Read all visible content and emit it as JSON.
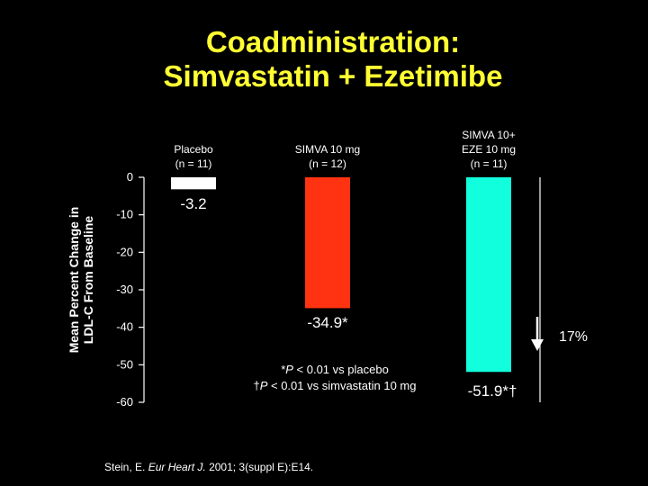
{
  "title": {
    "line1": "Coadministration:",
    "line2": "Simvastatin + Ezetimibe"
  },
  "colors": {
    "background": "#000000",
    "title": "#ffff33",
    "text": "#ffffff",
    "placebo_bar": "#ffffff",
    "simva_bar": "#ff3311",
    "combo_bar": "#11ffdd"
  },
  "chart_data": {
    "type": "bar",
    "categories": [
      [
        "Placebo",
        "(n = 11)"
      ],
      [
        "SIMVA 10 mg",
        "(n = 12)"
      ],
      [
        "SIMVA 10+",
        "EZE 10 mg",
        "(n = 11)"
      ]
    ],
    "values": [
      -3.2,
      -34.9,
      -51.9
    ],
    "value_labels": [
      "-3.2",
      "-34.9*",
      "-51.9*†"
    ],
    "ylabel": [
      "Mean Percent Change in",
      "LDL-C From Baseline"
    ],
    "ylim": [
      -60,
      0
    ],
    "yticks": [
      "0",
      "-10",
      "-20",
      "-30",
      "-40",
      "-50",
      "-60"
    ],
    "annotation": {
      "arrow": "down-arrow",
      "text": "17%"
    }
  },
  "footnotes": {
    "line1_italic": "P",
    "line1": "*P < 0.01 vs placebo",
    "line2": "†P < 0.01 vs simvastatin 10 mg"
  },
  "source": {
    "author": "Stein, E. ",
    "journal": "Eur Heart J.",
    "rest": " 2001; 3(suppl E):E14."
  }
}
